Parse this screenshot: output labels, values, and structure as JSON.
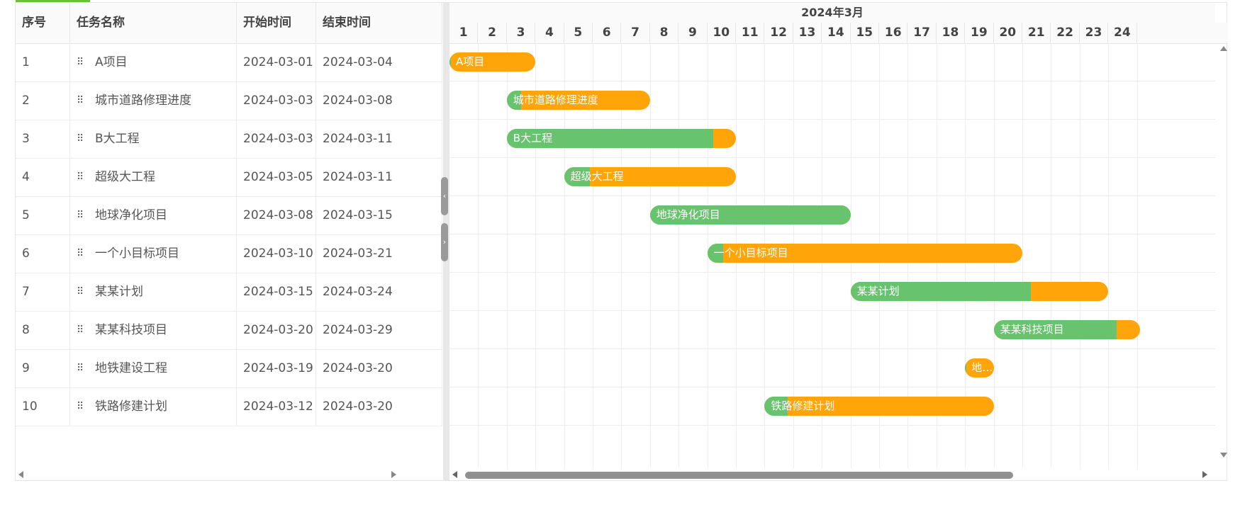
{
  "table": {
    "columns": {
      "seq": "序号",
      "name": "任务名称",
      "start": "开始时间",
      "end": "结束时间"
    },
    "drag_glyph": "⠿",
    "rows": [
      {
        "seq": "1",
        "name": "A项目",
        "start": "2024-03-01",
        "end": "2024-03-04"
      },
      {
        "seq": "2",
        "name": "城市道路修理进度",
        "start": "2024-03-03",
        "end": "2024-03-08"
      },
      {
        "seq": "3",
        "name": "B大工程",
        "start": "2024-03-03",
        "end": "2024-03-11"
      },
      {
        "seq": "4",
        "name": "超级大工程",
        "start": "2024-03-05",
        "end": "2024-03-11"
      },
      {
        "seq": "5",
        "name": "地球净化项目",
        "start": "2024-03-08",
        "end": "2024-03-15"
      },
      {
        "seq": "6",
        "name": "一个小目标项目",
        "start": "2024-03-10",
        "end": "2024-03-21"
      },
      {
        "seq": "7",
        "name": "某某计划",
        "start": "2024-03-15",
        "end": "2024-03-24"
      },
      {
        "seq": "8",
        "name": "某某科技项目",
        "start": "2024-03-20",
        "end": "2024-03-29"
      },
      {
        "seq": "9",
        "name": "地铁建设工程",
        "start": "2024-03-19",
        "end": "2024-03-20"
      },
      {
        "seq": "10",
        "name": "铁路修建计划",
        "start": "2024-03-12",
        "end": "2024-03-20"
      }
    ]
  },
  "timeline": {
    "month_label": "2024年3月",
    "days": [
      "1",
      "2",
      "3",
      "4",
      "5",
      "6",
      "7",
      "8",
      "9",
      "10",
      "11",
      "12",
      "13",
      "14",
      "15",
      "16",
      "17",
      "18",
      "19",
      "20",
      "21",
      "22",
      "23",
      "24"
    ],
    "bars": [
      {
        "label": "A项目",
        "start_day": 1,
        "end_day": 3,
        "progress": 0.02
      },
      {
        "label": "城市道路修理进度",
        "start_day": 3,
        "end_day": 7,
        "progress": 0.1
      },
      {
        "label": "B大工程",
        "start_day": 3,
        "end_day": 10,
        "progress": 0.9
      },
      {
        "label": "超级大工程",
        "start_day": 5,
        "end_day": 10,
        "progress": 0.15
      },
      {
        "label": "地球净化项目",
        "start_day": 8,
        "end_day": 14,
        "progress": 1.0
      },
      {
        "label": "一个小目标项目",
        "start_day": 10,
        "end_day": 20,
        "progress": 0.05
      },
      {
        "label": "某某计划",
        "start_day": 15,
        "end_day": 23,
        "progress": 0.7
      },
      {
        "label": "某某科技项目",
        "start_day": 20,
        "end_day": 24.1,
        "progress": 0.84
      },
      {
        "label": "地…",
        "start_day": 19,
        "end_day": 19,
        "progress": 0.05
      },
      {
        "label": "铁路修建计划",
        "start_day": 12,
        "end_day": 19,
        "progress": 0.1
      }
    ]
  },
  "colors": {
    "progress": "#67c36d",
    "remaining": "#ffa50a",
    "accent": "#67c23a"
  },
  "splitter": {
    "collapse_glyph": "‹",
    "expand_glyph": "›"
  }
}
